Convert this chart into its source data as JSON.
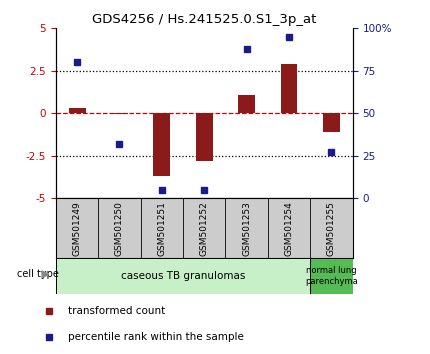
{
  "title": "GDS4256 / Hs.241525.0.S1_3p_at",
  "samples": [
    "GSM501249",
    "GSM501250",
    "GSM501251",
    "GSM501252",
    "GSM501253",
    "GSM501254",
    "GSM501255"
  ],
  "transformed_count": [
    0.3,
    -0.05,
    -3.7,
    -2.8,
    1.1,
    2.9,
    -1.1
  ],
  "percentile_rank": [
    80,
    32,
    5,
    5,
    88,
    95,
    27
  ],
  "ylim_left": [
    -5,
    5
  ],
  "ylim_right": [
    0,
    100
  ],
  "bar_color": "#8B1A1A",
  "dot_color": "#1A1A8B",
  "hline_color": "#CC0000",
  "dotted_color": "#000000",
  "gray_bg": "#cccccc",
  "cell_group1_color": "#c8f0c8",
  "cell_group2_color": "#55bb55",
  "cell_group1_label": "caseous TB granulomas",
  "cell_group2_label": "normal lung\nparenchyma",
  "legend_bar_label": "transformed count",
  "legend_dot_label": "percentile rank within the sample",
  "cell_type_label": "cell type"
}
